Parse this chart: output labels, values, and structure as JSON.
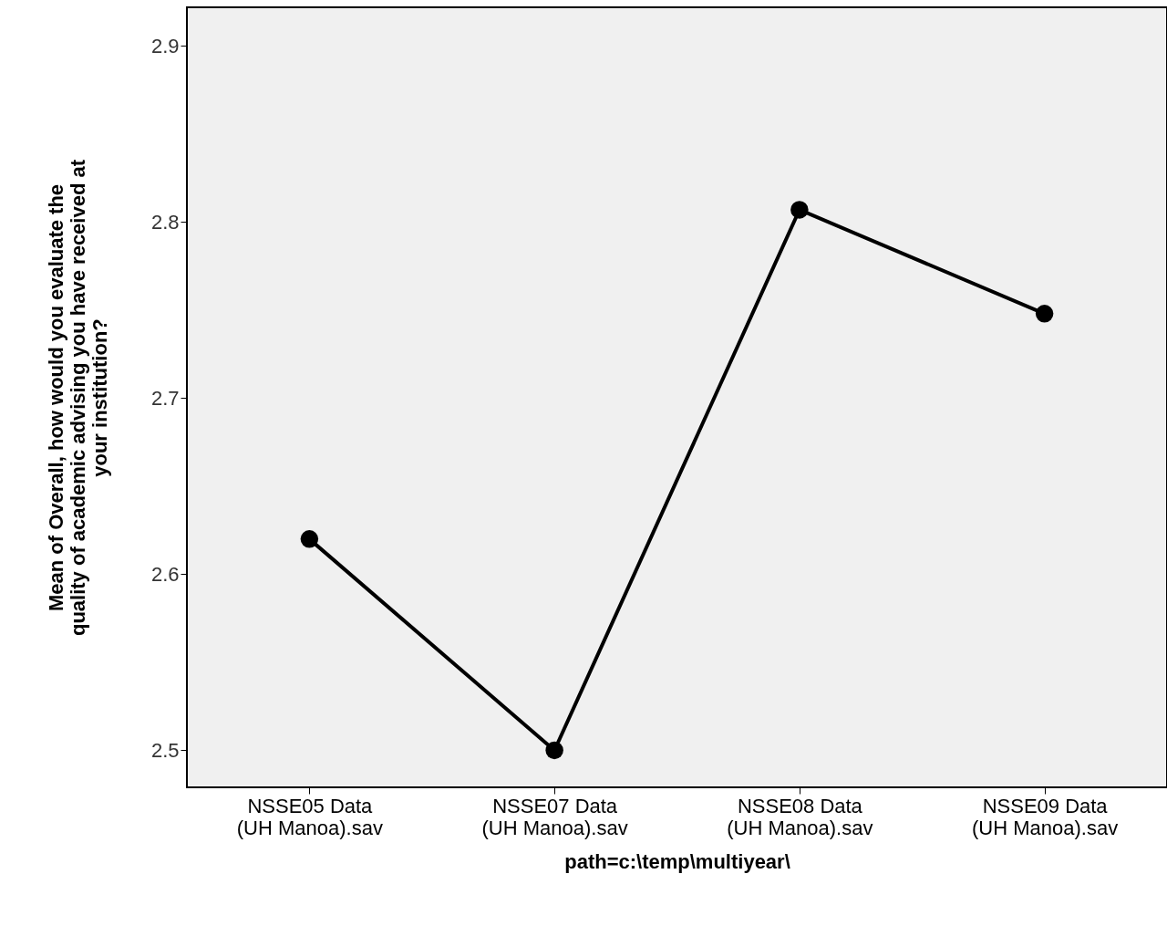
{
  "chart_data": {
    "type": "line",
    "xlabel": "path=c:\\temp\\multiyear\\",
    "ylabel": "Mean of Overall, how would you evaluate the quality of academic advising you have received at your institution?",
    "categories": [
      "NSSE05 Data\n(UH Manoa).sav",
      "NSSE07 Data\n(UH Manoa).sav",
      "NSSE08 Data\n(UH Manoa).sav",
      "NSSE09 Data\n(UH Manoa).sav"
    ],
    "series": [
      {
        "color": "#000000",
        "values": [
          2.62,
          2.5,
          2.807,
          2.748
        ]
      }
    ],
    "ylim": [
      2.479,
      2.922
    ],
    "yticks": [
      2.5,
      2.6,
      2.7,
      2.8,
      2.9
    ],
    "grid": false,
    "marker": "circle",
    "line_style": "solid"
  }
}
